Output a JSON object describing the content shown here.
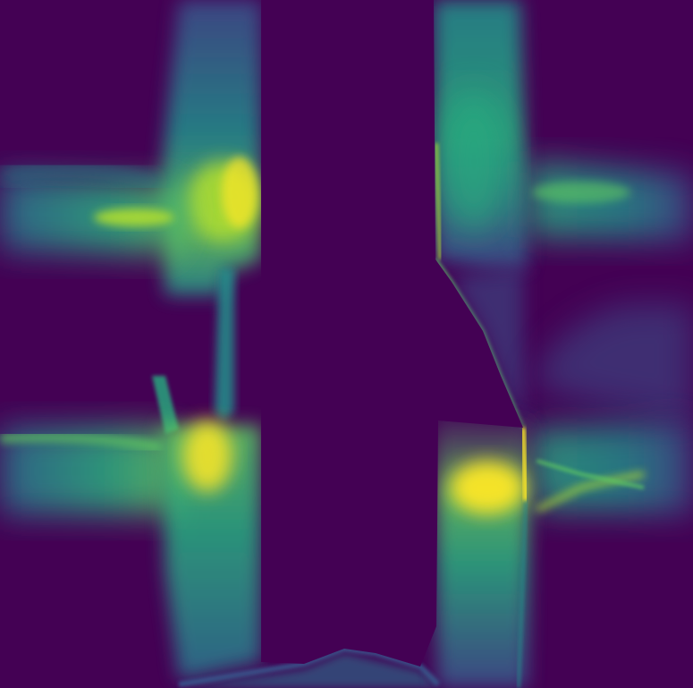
{
  "image": {
    "kind": "scalar-field-visualization",
    "colormap": "viridis",
    "palette": {
      "background": "#440154",
      "deep_violet": "#46085c",
      "indigo": "#3b528b",
      "blue": "#2c728e",
      "teal": "#21918c",
      "green": "#28ae80",
      "lime": "#5ec962",
      "yellow_green": "#addc30",
      "yellow": "#fde725"
    }
  }
}
